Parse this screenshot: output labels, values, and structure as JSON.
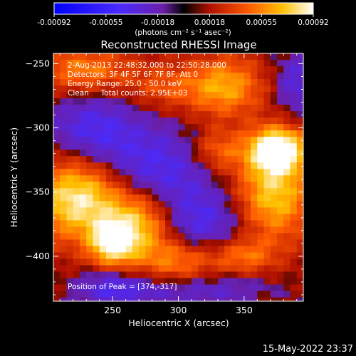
{
  "chart_data": {
    "type": "heatmap",
    "title": "Reconstructed RHESSI Image",
    "xlabel": "Heliocentric X (arcsec)",
    "ylabel": "Heliocentric Y (arcsec)",
    "xlim": [
      205,
      395
    ],
    "ylim": [
      -435,
      -242
    ],
    "x_ticks": [
      250,
      300,
      350
    ],
    "y_ticks": [
      -250,
      -300,
      -350,
      -400
    ],
    "colorbar": {
      "ticks": [
        "-0.00092",
        "-0.00055",
        "-0.00018",
        "0.00018",
        "0.00055",
        "0.00092"
      ],
      "min": -0.00092,
      "max": 0.00092,
      "unit_label": "(photons cm⁻² s⁻¹ asec⁻²)"
    },
    "grid": false,
    "peak": {
      "x": 374,
      "y": -317
    },
    "hot_regions": [
      {
        "x": 225,
        "y": -355,
        "sx": 25,
        "sy": 22,
        "amp": 1.0
      },
      {
        "x": 250,
        "y": -390,
        "sx": 12,
        "sy": 12,
        "amp": 0.9
      },
      {
        "x": 272,
        "y": -375,
        "sx": 18,
        "sy": 18,
        "amp": 0.75
      },
      {
        "x": 375,
        "y": -317,
        "sx": 15,
        "sy": 12,
        "amp": 1.15
      },
      {
        "x": 372,
        "y": -352,
        "sx": 20,
        "sy": 25,
        "amp": 0.8
      },
      {
        "x": 335,
        "y": -268,
        "sx": 20,
        "sy": 16,
        "amp": 0.65
      },
      {
        "x": 228,
        "y": -255,
        "sx": 25,
        "sy": 12,
        "amp": 0.5
      },
      {
        "x": 300,
        "y": -405,
        "sx": 22,
        "sy": 14,
        "amp": 0.55
      },
      {
        "x": 330,
        "y": -318,
        "sx": 14,
        "sy": 12,
        "amp": 0.45
      },
      {
        "x": 290,
        "y": -268,
        "sx": 20,
        "sy": 12,
        "amp": 0.3
      },
      {
        "x": 350,
        "y": -400,
        "sx": 16,
        "sy": 10,
        "amp": 0.45
      }
    ],
    "cool_regions": [
      {
        "x": 280,
        "y": -332,
        "sx": 35,
        "sy": 22,
        "amp": 0.9
      },
      {
        "x": 235,
        "y": -300,
        "sx": 25,
        "sy": 18,
        "amp": 0.8
      },
      {
        "x": 315,
        "y": -375,
        "sx": 28,
        "sy": 18,
        "amp": 0.85
      },
      {
        "x": 310,
        "y": -425,
        "sx": 40,
        "sy": 10,
        "amp": 0.7
      },
      {
        "x": 390,
        "y": -265,
        "sx": 12,
        "sy": 18,
        "amp": 0.7
      },
      {
        "x": 250,
        "y": -425,
        "sx": 20,
        "sy": 10,
        "amp": 0.7
      }
    ]
  },
  "info": {
    "line1": "2-Aug-2013 22:48:32.000 to 22:50:28.000",
    "line2": "Detectors: 3F 4F 5F 6F 7F 8F, Att 0",
    "line3": "Energy Range: 25.0 - 50.0 keV",
    "line4": "Clean     Total counts: 2.95E+03",
    "peak_text": "Position of Peak = [374,-317]"
  },
  "footer": {
    "date": "15-May-2022 23:37"
  }
}
